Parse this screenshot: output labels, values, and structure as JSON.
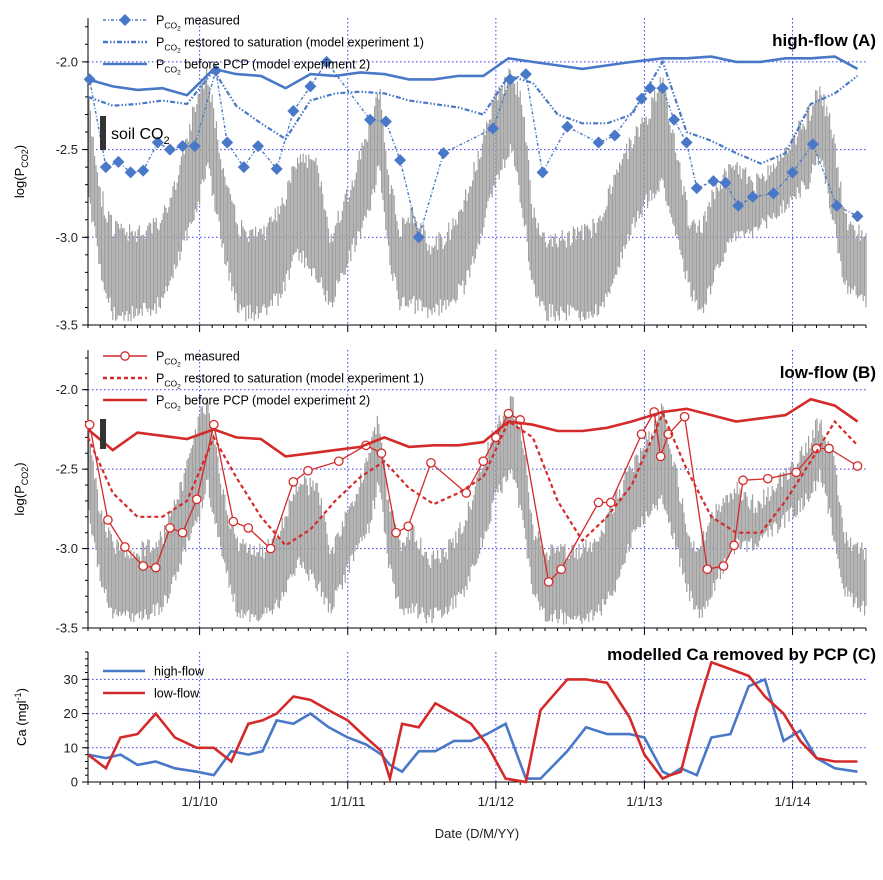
{
  "figure": {
    "xlabel": "Date (D/M/YY)",
    "x_tick_labels": [
      "1/1/10",
      "1/1/11",
      "1/1/12",
      "1/1/13",
      "1/1/14"
    ],
    "colors": {
      "blue": "#4a78c8",
      "red": "#d42a2a",
      "gray": "#a0a0a0",
      "grid": "#3a3af0"
    }
  },
  "chart_data": [
    {
      "type": "line",
      "title": "high-flow  (A)",
      "ylabel": "log(P",
      "ylabel_sub": "CO2",
      "ylabel_close": ")",
      "ylim": [
        -3.5,
        -1.75
      ],
      "yticks": [
        -3.5,
        -3.0,
        -2.5,
        -2.0
      ],
      "ytick_labels": [
        "-3.5",
        "-3.0",
        "-2.5",
        "-2.0"
      ],
      "xlim": [
        "2009-04-01",
        "2014-07-01"
      ],
      "annotation": {
        "text": "soil CO",
        "sub": "2"
      },
      "legend_placement": "top-left",
      "legend": [
        {
          "pre": "P",
          "sub": "CO",
          "sub2": "2",
          "text": "  measured"
        },
        {
          "pre": "P",
          "sub": "CO",
          "sub2": "2",
          "text": "  restored to saturation (model experiment 1)"
        },
        {
          "pre": "P",
          "sub": "CO",
          "sub2": "2",
          "text": "  before PCP (model experiment 2)"
        }
      ],
      "series": [
        {
          "style": "measured",
          "x": [
            "2009-04-05",
            "2009-05-15",
            "2009-06-15",
            "2009-07-15",
            "2009-08-15",
            "2009-09-20",
            "2009-10-20",
            "2009-11-20",
            "2009-12-20",
            "2010-02-10",
            "2010-03-10",
            "2010-04-20",
            "2010-05-25",
            "2010-07-10",
            "2010-08-20",
            "2010-10-01",
            "2010-11-10",
            "2011-02-25",
            "2011-04-05",
            "2011-05-10",
            "2011-06-25",
            "2011-08-25",
            "2011-12-25",
            "2012-02-05",
            "2012-03-15",
            "2012-04-25",
            "2012-06-25",
            "2012-09-10",
            "2012-10-20",
            "2012-12-25",
            "2013-01-15",
            "2013-02-15",
            "2013-03-15",
            "2013-04-15",
            "2013-05-10",
            "2013-06-20",
            "2013-07-20",
            "2013-08-20",
            "2013-09-25",
            "2013-11-15",
            "2014-01-01",
            "2014-02-20",
            "2014-04-20",
            "2014-06-10"
          ],
          "y": [
            -2.1,
            -2.6,
            -2.57,
            -2.63,
            -2.62,
            -2.46,
            -2.5,
            -2.48,
            -2.48,
            -2.05,
            -2.46,
            -2.6,
            -2.48,
            -2.61,
            -2.28,
            -2.14,
            -2.0,
            -2.33,
            -2.34,
            -2.56,
            -3.0,
            -2.52,
            -2.38,
            -2.1,
            -2.07,
            -2.63,
            -2.37,
            -2.46,
            -2.42,
            -2.21,
            -2.15,
            -2.15,
            -2.33,
            -2.46,
            -2.72,
            -2.68,
            -2.69,
            -2.82,
            -2.77,
            -2.75,
            -2.63,
            -2.47,
            -2.82,
            -2.88
          ]
        },
        {
          "style": "restored",
          "x": [
            "2009-04-01",
            "2009-06-01",
            "2009-08-01",
            "2009-10-01",
            "2009-12-01",
            "2010-02-05",
            "2010-04-01",
            "2010-06-01",
            "2010-08-01",
            "2010-10-01",
            "2010-12-01",
            "2011-02-01",
            "2011-04-01",
            "2011-06-01",
            "2011-08-01",
            "2011-10-01",
            "2011-12-01",
            "2012-02-01",
            "2012-04-01",
            "2012-06-01",
            "2012-08-01",
            "2012-10-01",
            "2012-12-01",
            "2013-02-15",
            "2013-04-15",
            "2013-06-15",
            "2013-08-15",
            "2013-10-15",
            "2013-12-15",
            "2014-02-15",
            "2014-04-15",
            "2014-06-10"
          ],
          "y": [
            -2.2,
            -2.25,
            -2.24,
            -2.22,
            -2.24,
            -2.05,
            -2.25,
            -2.35,
            -2.44,
            -2.22,
            -2.18,
            -2.17,
            -2.18,
            -2.22,
            -2.24,
            -2.26,
            -2.3,
            -2.08,
            -2.12,
            -2.3,
            -2.35,
            -2.35,
            -2.3,
            -2.0,
            -2.4,
            -2.45,
            -2.52,
            -2.58,
            -2.52,
            -2.24,
            -2.18,
            -2.08
          ]
        },
        {
          "style": "before",
          "x": [
            "2009-04-01",
            "2009-06-01",
            "2009-08-01",
            "2009-10-01",
            "2009-12-01",
            "2010-02-05",
            "2010-04-01",
            "2010-06-01",
            "2010-08-01",
            "2010-10-01",
            "2010-12-01",
            "2011-02-01",
            "2011-04-01",
            "2011-06-01",
            "2011-08-01",
            "2011-10-01",
            "2011-12-01",
            "2012-02-01",
            "2012-04-01",
            "2012-06-01",
            "2012-08-01",
            "2012-10-01",
            "2012-12-01",
            "2013-02-15",
            "2013-04-15",
            "2013-06-15",
            "2013-08-15",
            "2013-10-15",
            "2013-12-15",
            "2014-02-15",
            "2014-04-15",
            "2014-06-10"
          ],
          "y": [
            -2.1,
            -2.14,
            -2.16,
            -2.15,
            -2.19,
            -2.04,
            -2.07,
            -2.08,
            -2.15,
            -2.07,
            -2.08,
            -2.06,
            -2.07,
            -2.1,
            -2.1,
            -2.08,
            -2.08,
            -1.98,
            -2.0,
            -2.02,
            -2.04,
            -2.02,
            -2.0,
            -1.98,
            -1.98,
            -1.97,
            -2.0,
            -2.0,
            -1.98,
            -1.98,
            -1.97,
            -2.04
          ]
        }
      ]
    },
    {
      "type": "line",
      "title": "low-flow  (B)",
      "ylabel": "log(P",
      "ylabel_sub": "CO2",
      "ylabel_close": ")",
      "ylim": [
        -3.5,
        -1.75
      ],
      "yticks": [
        -3.5,
        -3.0,
        -2.5,
        -2.0
      ],
      "ytick_labels": [
        "-3.5",
        "-3.0",
        "-2.5",
        "-2.0"
      ],
      "xlim": [
        "2009-04-01",
        "2014-07-01"
      ],
      "legend_placement": "top-left",
      "legend": [
        {
          "pre": "P",
          "sub": "CO",
          "sub2": "2",
          "text": "  measured"
        },
        {
          "pre": "P",
          "sub": "CO",
          "sub2": "2",
          "text": "  restored to saturation (model experiment 1)"
        },
        {
          "pre": "P",
          "sub": "CO",
          "sub2": "2",
          "text": "  before PCP (model experiment 2)"
        }
      ],
      "series": [
        {
          "style": "measured",
          "x": [
            "2009-04-05",
            "2009-05-20",
            "2009-07-01",
            "2009-08-15",
            "2009-09-15",
            "2009-10-20",
            "2009-11-20",
            "2009-12-25",
            "2010-02-05",
            "2010-03-25",
            "2010-05-01",
            "2010-06-25",
            "2010-08-20",
            "2010-09-25",
            "2010-12-10",
            "2011-02-15",
            "2011-03-25",
            "2011-04-30",
            "2011-05-30",
            "2011-07-25",
            "2011-10-20",
            "2011-12-01",
            "2012-01-01",
            "2012-02-01",
            "2012-03-01",
            "2012-05-10",
            "2012-06-10",
            "2012-09-10",
            "2012-10-10",
            "2012-12-25",
            "2013-01-25",
            "2013-02-10",
            "2013-03-01",
            "2013-04-10",
            "2013-06-05",
            "2013-07-15",
            "2013-08-10",
            "2013-09-01",
            "2013-11-01",
            "2014-01-10",
            "2014-03-01",
            "2014-04-01",
            "2014-06-10"
          ],
          "y": [
            -2.22,
            -2.82,
            -2.99,
            -3.11,
            -3.12,
            -2.87,
            -2.9,
            -2.69,
            -2.22,
            -2.83,
            -2.87,
            -3.0,
            -2.58,
            -2.51,
            -2.45,
            -2.35,
            -2.4,
            -2.9,
            -2.86,
            -2.46,
            -2.65,
            -2.45,
            -2.3,
            -2.15,
            -2.19,
            -3.21,
            -3.13,
            -2.71,
            -2.71,
            -2.28,
            -2.14,
            -2.42,
            -2.28,
            -2.17,
            -3.13,
            -3.11,
            -2.98,
            -2.57,
            -2.56,
            -2.52,
            -2.37,
            -2.37,
            -2.48
          ]
        },
        {
          "style": "restored",
          "x": [
            "2009-04-01",
            "2009-06-01",
            "2009-08-01",
            "2009-10-01",
            "2009-12-01",
            "2010-02-05",
            "2010-04-01",
            "2010-06-01",
            "2010-08-01",
            "2010-10-01",
            "2010-12-01",
            "2011-02-01",
            "2011-04-01",
            "2011-06-01",
            "2011-08-01",
            "2011-10-01",
            "2011-12-01",
            "2012-02-01",
            "2012-04-01",
            "2012-06-01",
            "2012-08-01",
            "2012-10-01",
            "2012-12-01",
            "2013-02-15",
            "2013-04-15",
            "2013-06-15",
            "2013-08-15",
            "2013-10-15",
            "2013-12-15",
            "2014-02-15",
            "2014-04-15",
            "2014-06-10"
          ],
          "y": [
            -2.3,
            -2.65,
            -2.8,
            -2.8,
            -2.7,
            -2.3,
            -2.55,
            -2.8,
            -2.98,
            -2.88,
            -2.7,
            -2.55,
            -2.45,
            -2.62,
            -2.72,
            -2.65,
            -2.55,
            -2.2,
            -2.3,
            -2.7,
            -2.95,
            -2.8,
            -2.6,
            -2.15,
            -2.5,
            -2.8,
            -2.9,
            -2.9,
            -2.7,
            -2.45,
            -2.2,
            -2.35
          ]
        },
        {
          "style": "before",
          "x": [
            "2009-04-01",
            "2009-06-01",
            "2009-08-01",
            "2009-10-01",
            "2009-12-01",
            "2010-02-05",
            "2010-04-01",
            "2010-06-01",
            "2010-08-01",
            "2010-10-01",
            "2010-12-01",
            "2011-02-01",
            "2011-04-01",
            "2011-06-01",
            "2011-08-01",
            "2011-10-01",
            "2011-12-01",
            "2012-02-01",
            "2012-04-01",
            "2012-06-01",
            "2012-08-01",
            "2012-10-01",
            "2012-12-01",
            "2013-02-15",
            "2013-04-15",
            "2013-06-15",
            "2013-08-15",
            "2013-10-15",
            "2013-12-15",
            "2014-02-15",
            "2014-04-15",
            "2014-06-10"
          ],
          "y": [
            -2.25,
            -2.38,
            -2.27,
            -2.29,
            -2.31,
            -2.25,
            -2.3,
            -2.31,
            -2.42,
            -2.4,
            -2.38,
            -2.36,
            -2.3,
            -2.36,
            -2.35,
            -2.35,
            -2.33,
            -2.2,
            -2.22,
            -2.26,
            -2.26,
            -2.24,
            -2.2,
            -2.14,
            -2.12,
            -2.16,
            -2.2,
            -2.18,
            -2.16,
            -2.06,
            -2.1,
            -2.2
          ]
        }
      ]
    },
    {
      "type": "line",
      "title": "modelled Ca removed by PCP  (C)",
      "ylabel": "Ca (mgl",
      "ylabel_sup": "-1",
      "ylabel_close": ")",
      "ylim": [
        0,
        38
      ],
      "yticks": [
        0,
        10,
        20,
        30
      ],
      "ytick_labels": [
        "0",
        "10",
        "20",
        "30"
      ],
      "xlim": [
        "2009-04-01",
        "2014-07-01"
      ],
      "legend_placement": "top-left",
      "legend": [
        {
          "text": "high-flow"
        },
        {
          "text": "low-flow"
        }
      ],
      "series": [
        {
          "style": "blue",
          "name": "high-flow",
          "x": [
            "2009-04-01",
            "2009-05-15",
            "2009-06-20",
            "2009-08-01",
            "2009-09-15",
            "2009-11-01",
            "2009-12-25",
            "2010-02-05",
            "2010-03-20",
            "2010-05-01",
            "2010-06-05",
            "2010-07-10",
            "2010-08-20",
            "2010-10-01",
            "2010-11-15",
            "2011-01-01",
            "2011-02-15",
            "2011-03-25",
            "2011-04-15",
            "2011-05-15",
            "2011-06-25",
            "2011-08-05",
            "2011-09-20",
            "2011-11-01",
            "2011-12-10",
            "2012-01-25",
            "2012-03-15",
            "2012-04-20",
            "2012-06-25",
            "2012-08-10",
            "2012-10-01",
            "2012-11-25",
            "2013-01-01",
            "2013-02-15",
            "2013-03-05",
            "2013-04-01",
            "2013-05-10",
            "2013-06-15",
            "2013-08-01",
            "2013-09-15",
            "2013-10-25",
            "2013-12-10",
            "2014-01-20",
            "2014-03-01",
            "2014-04-15",
            "2014-06-10"
          ],
          "y": [
            8,
            7,
            8,
            5,
            6,
            4,
            3,
            2,
            9,
            8,
            9,
            18,
            17,
            20,
            16,
            13,
            11,
            8,
            5,
            3,
            9,
            9,
            12,
            12,
            14,
            17,
            1,
            1,
            9,
            16,
            14,
            14,
            13,
            3,
            2,
            4,
            2,
            13,
            14,
            28,
            30,
            12,
            15,
            7,
            4,
            3
          ]
        },
        {
          "style": "red",
          "name": "low-flow",
          "x": [
            "2009-04-01",
            "2009-05-15",
            "2009-06-20",
            "2009-08-01",
            "2009-09-15",
            "2009-11-01",
            "2009-12-25",
            "2010-02-05",
            "2010-03-20",
            "2010-05-01",
            "2010-06-05",
            "2010-07-10",
            "2010-08-20",
            "2010-10-01",
            "2010-11-15",
            "2011-01-01",
            "2011-02-15",
            "2011-03-25",
            "2011-04-15",
            "2011-05-15",
            "2011-06-25",
            "2011-08-05",
            "2011-09-20",
            "2011-11-01",
            "2011-12-10",
            "2012-01-25",
            "2012-03-15",
            "2012-04-20",
            "2012-06-25",
            "2012-08-10",
            "2012-10-01",
            "2012-11-25",
            "2013-01-01",
            "2013-02-15",
            "2013-03-05",
            "2013-04-01",
            "2013-05-10",
            "2013-06-15",
            "2013-08-01",
            "2013-09-15",
            "2013-10-25",
            "2013-12-10",
            "2014-01-20",
            "2014-03-01",
            "2014-04-15",
            "2014-06-10"
          ],
          "y": [
            8,
            4,
            13,
            14,
            20,
            13,
            10,
            10,
            6,
            17,
            18,
            20,
            25,
            24,
            21,
            18,
            13,
            9,
            1,
            17,
            16,
            23,
            20,
            17,
            11,
            1,
            0,
            21,
            30,
            30,
            29,
            19,
            8,
            1,
            2,
            3,
            21,
            35,
            33,
            31,
            25,
            20,
            12,
            7,
            6,
            6
          ]
        }
      ]
    }
  ]
}
